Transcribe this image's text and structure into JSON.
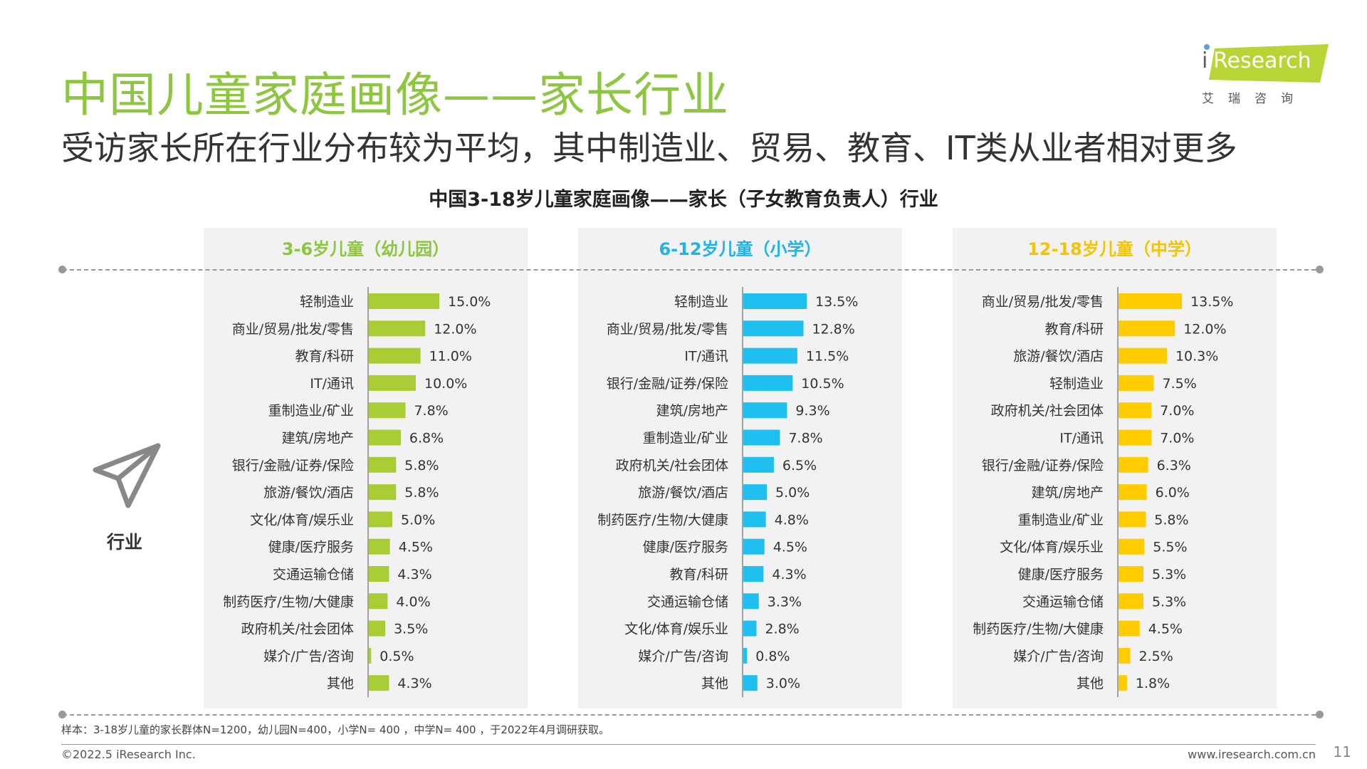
{
  "header": {
    "title": "中国儿童家庭画像——家长行业",
    "subtitle": "受访家长所在行业分布较为平均，其中制造业、贸易、教育、IT类从业者相对更多"
  },
  "logo": {
    "brand": "Research",
    "brand_i": "i",
    "cn": "艾瑞咨询",
    "color": "#b9d535"
  },
  "side_label": "行业",
  "note": "样本：3-18岁儿童的家长群体N=1200，幼儿园N=400，小学N= 400 ，中学N= 400 ，于2022年4月调研获取。",
  "footer": {
    "copyright": "©2022.5 iResearch Inc.",
    "site": "www.iresearch.com.cn",
    "page": "11"
  },
  "chart_data": {
    "title": "中国3-18岁儿童家庭画像——家长（子女教育负责人）行业",
    "type": "bar",
    "orientation": "horizontal",
    "panels": [
      {
        "title": "3-6岁儿童（幼儿园）",
        "color": "#a9cc35",
        "title_color": "#8dc63f",
        "categories": [
          "轻制造业",
          "商业/贸易/批发/零售",
          "教育/科研",
          "IT/通讯",
          "重制造业/矿业",
          "建筑/房地产",
          "银行/金融/证券/保险",
          "旅游/餐饮/酒店",
          "文化/体育/娱乐业",
          "健康/医疗服务",
          "交通运输仓储",
          "制药医疗/生物/大健康",
          "政府机关/社会团体",
          "媒介/广告/咨询",
          "其他"
        ],
        "values": [
          15.0,
          12.0,
          11.0,
          10.0,
          7.8,
          6.8,
          5.8,
          5.8,
          5.0,
          4.5,
          4.3,
          4.0,
          3.5,
          0.5,
          4.3
        ],
        "labels": [
          "15.0%",
          "12.0%",
          "11.0%",
          "10.0%",
          "7.8%",
          "6.8%",
          "5.8%",
          "5.8%",
          "5.0%",
          "4.5%",
          "4.3%",
          "4.0%",
          "3.5%",
          "0.5%",
          "4.3%"
        ]
      },
      {
        "title": "6-12岁儿童（小学）",
        "color": "#1fc0ef",
        "title_color": "#1fb3e8",
        "categories": [
          "轻制造业",
          "商业/贸易/批发/零售",
          "IT/通讯",
          "银行/金融/证券/保险",
          "建筑/房地产",
          "重制造业/矿业",
          "政府机关/社会团体",
          "旅游/餐饮/酒店",
          "制药医疗/生物/大健康",
          "健康/医疗服务",
          "教育/科研",
          "交通运输仓储",
          "文化/体育/娱乐业",
          "媒介/广告/咨询",
          "其他"
        ],
        "values": [
          13.5,
          12.8,
          11.5,
          10.5,
          9.3,
          7.8,
          6.5,
          5.0,
          4.8,
          4.5,
          4.3,
          3.3,
          2.8,
          0.8,
          3.0
        ],
        "labels": [
          "13.5%",
          "12.8%",
          "11.5%",
          "10.5%",
          "9.3%",
          "7.8%",
          "6.5%",
          "5.0%",
          "4.8%",
          "4.5%",
          "4.3%",
          "3.3%",
          "2.8%",
          "0.8%",
          "3.0%"
        ]
      },
      {
        "title": "12-18岁儿童（中学）",
        "color": "#ffcc00",
        "title_color": "#f5c400",
        "categories": [
          "商业/贸易/批发/零售",
          "教育/科研",
          "旅游/餐饮/酒店",
          "轻制造业",
          "政府机关/社会团体",
          "IT/通讯",
          "银行/金融/证券/保险",
          "建筑/房地产",
          "重制造业/矿业",
          "文化/体育/娱乐业",
          "健康/医疗服务",
          "交通运输仓储",
          "制药医疗/生物/大健康",
          "媒介/广告/咨询",
          "其他"
        ],
        "values": [
          13.5,
          12.0,
          10.3,
          7.5,
          7.0,
          7.0,
          6.3,
          6.0,
          5.8,
          5.5,
          5.3,
          5.3,
          4.5,
          2.5,
          1.8
        ],
        "labels": [
          "13.5%",
          "12.0%",
          "10.3%",
          "7.5%",
          "7.0%",
          "7.0%",
          "6.3%",
          "6.0%",
          "5.8%",
          "5.5%",
          "5.3%",
          "5.3%",
          "4.5%",
          "2.5%",
          "1.8%"
        ]
      }
    ]
  }
}
